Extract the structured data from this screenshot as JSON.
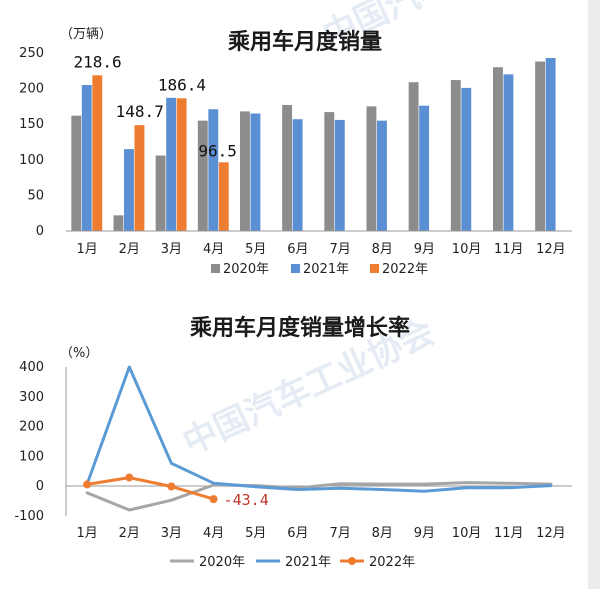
{
  "watermark": "中国汽车工业协会",
  "chart_data": [
    {
      "type": "bar",
      "title": "乘用车月度销量",
      "ylabel": "（万辆）",
      "ylim": [
        0,
        250
      ],
      "yticks": [
        "0",
        "50",
        "100",
        "150",
        "200",
        "250"
      ],
      "categories": [
        "1月",
        "2月",
        "3月",
        "4月",
        "5月",
        "6月",
        "7月",
        "8月",
        "9月",
        "10月",
        "11月",
        "12月"
      ],
      "series": [
        {
          "name": "2020年",
          "color": "#8c8c8c",
          "values": [
            162,
            22,
            106,
            155,
            168,
            177,
            167,
            175,
            209,
            212,
            230,
            238
          ]
        },
        {
          "name": "2021年",
          "color": "#5b8fd4",
          "values": [
            205,
            115,
            187,
            171,
            165,
            157,
            156,
            155,
            176,
            201,
            220,
            243
          ]
        },
        {
          "name": "2022年",
          "color": "#ee7d31",
          "values": [
            218.6,
            148.7,
            186.4,
            96.5,
            null,
            null,
            null,
            null,
            null,
            null,
            null,
            null
          ]
        }
      ],
      "data_labels": [
        "218.6",
        "148.7",
        "186.4",
        "96.5"
      ],
      "legend_position": "bottom"
    },
    {
      "type": "line",
      "title": "乘用车月度销量增长率",
      "ylabel": "（%）",
      "ylim": [
        -100,
        400
      ],
      "yticks": [
        "400",
        "300",
        "200",
        "100",
        "0",
        "-100"
      ],
      "categories": [
        "1月",
        "2月",
        "3月",
        "4月",
        "5月",
        "6月",
        "7月",
        "8月",
        "9月",
        "10月",
        "11月",
        "12月"
      ],
      "series": [
        {
          "name": "2020年",
          "color": "#a6a6a6",
          "values": [
            -22,
            -80,
            -47,
            4,
            2,
            -6,
            8,
            7,
            7,
            12,
            10,
            7
          ]
        },
        {
          "name": "2021年",
          "color": "#5b9bd5",
          "values": [
            7,
            400,
            77,
            10,
            -2,
            -11,
            -7,
            -11,
            -17,
            -5,
            -5,
            2
          ]
        },
        {
          "name": "2022年",
          "color": "#ee7d31",
          "values": [
            6,
            29,
            -1,
            -43.4,
            null,
            null,
            null,
            null,
            null,
            null,
            null,
            null
          ]
        }
      ],
      "data_labels": [
        "-43.4"
      ],
      "legend_position": "bottom"
    }
  ]
}
